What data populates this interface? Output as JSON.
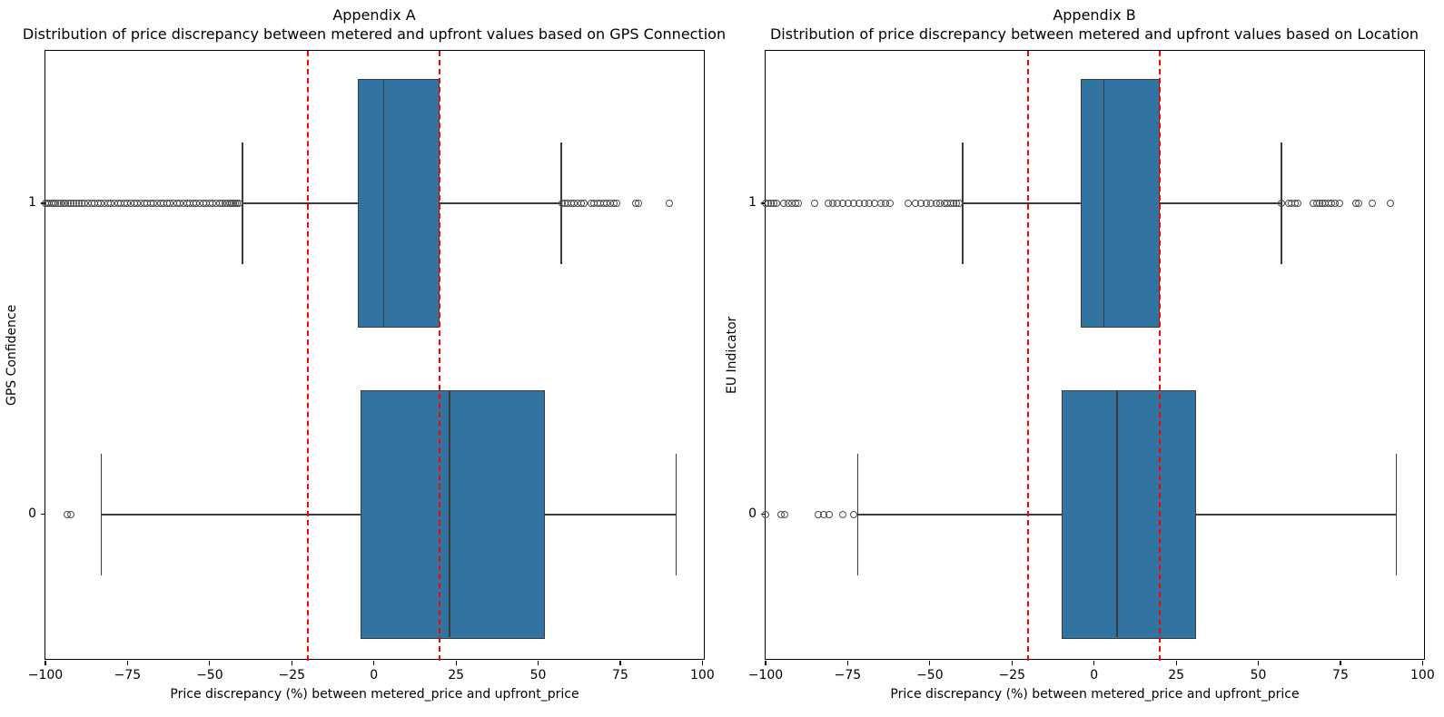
{
  "figure": {
    "background": "#ffffff"
  },
  "colors": {
    "box_fill": "#3274a1",
    "box_edge": "#3c3c3c",
    "whisker": "#3c3c3c",
    "outlier_edge": "#4a4a4a",
    "red_line": "#ff0000",
    "axis": "#000000",
    "text": "#000000"
  },
  "chart_data": [
    {
      "type": "boxplot",
      "orientation": "horizontal",
      "title": "Appendix A",
      "subtitle": "Distribution of price discrepancy between metered and upfront values based on GPS Connection",
      "ylabel": "GPS Confidence",
      "xlabel": "Price discrepancy (%) between metered_price and upfront_price",
      "xlim": [
        -100,
        101
      ],
      "x_tick_values": [
        -100,
        -75,
        -50,
        -25,
        0,
        25,
        50,
        75,
        100
      ],
      "x_tick_labels": [
        "−100",
        "−75",
        "−50",
        "−25",
        "0",
        "25",
        "50",
        "75",
        "100"
      ],
      "y_tick_labels": [
        "1",
        "0"
      ],
      "red_dashed_lines_x": [
        -20,
        20
      ],
      "grid": false,
      "rows": [
        {
          "category": "1",
          "whisker_low": -40,
          "q1": -5,
          "median": 3,
          "q3": 20,
          "whisker_high": 57,
          "outliers_low": [
            -100,
            -99.4,
            -98.8,
            -98.2,
            -97.6,
            -97,
            -96.2,
            -95.4,
            -94.6,
            -93.8,
            -93,
            -92.2,
            -91.4,
            -90.6,
            -89.8,
            -89,
            -88,
            -87,
            -86,
            -85,
            -84,
            -83,
            -82,
            -81,
            -80,
            -79,
            -78,
            -77,
            -76,
            -75,
            -74,
            -73,
            -72,
            -71,
            -70,
            -69,
            -68,
            -67,
            -66,
            -65,
            -64,
            -63,
            -62,
            -61,
            -60,
            -59,
            -58,
            -57,
            -56,
            -55,
            -54,
            -53,
            -52,
            -51,
            -50,
            -49,
            -48,
            -47,
            -46,
            -45.3,
            -44.6,
            -44,
            -43.4,
            -42.8,
            -42.2,
            -41.6,
            -41
          ],
          "outliers_high": [
            57.3,
            58.2,
            59.1,
            60,
            61,
            62,
            63,
            64,
            66.2,
            67.1,
            68,
            69,
            70,
            71,
            72,
            73,
            74,
            79.8,
            80.6,
            90
          ]
        },
        {
          "category": "0",
          "whisker_low": -83,
          "q1": -4,
          "median": 23,
          "q3": 52,
          "whisker_high": 92,
          "outliers_low": [
            -93.5,
            -92.2
          ],
          "outliers_high": []
        }
      ]
    },
    {
      "type": "boxplot",
      "orientation": "horizontal",
      "title": "Appendix B",
      "subtitle": "Distribution of price discrepancy between metered and upfront values based on Location",
      "ylabel": "EU Indicator",
      "xlabel": "Price discrepancy (%) between metered_price and upfront_price",
      "xlim": [
        -100,
        101
      ],
      "x_tick_values": [
        -100,
        -75,
        -50,
        -25,
        0,
        25,
        50,
        75,
        100
      ],
      "x_tick_labels": [
        "−100",
        "−75",
        "−50",
        "−25",
        "0",
        "25",
        "50",
        "75",
        "100"
      ],
      "y_tick_labels": [
        "1",
        "0"
      ],
      "red_dashed_lines_x": [
        -20,
        20
      ],
      "grid": false,
      "rows": [
        {
          "category": "1",
          "whisker_low": -40,
          "q1": -4,
          "median": 3,
          "q3": 20,
          "whisker_high": 57,
          "outliers_low": [
            -100,
            -99.2,
            -98.4,
            -97.6,
            -96.8,
            -94.5,
            -93.2,
            -92.1,
            -91,
            -90,
            -85.2,
            -81,
            -79.6,
            -78.2,
            -76.5,
            -74.8,
            -73.2,
            -71.6,
            -70,
            -68.4,
            -66.8,
            -65,
            -63.5,
            -62,
            -56.5,
            -54.5,
            -52.8,
            -51.2,
            -49.6,
            -48,
            -46.8,
            -45.6,
            -44.6,
            -43.6,
            -42.8,
            -42,
            -41.2
          ],
          "outliers_high": [
            57,
            59.3,
            60.2,
            61.1,
            62,
            66.8,
            67.7,
            68.6,
            69.5,
            70.4,
            71.3,
            72.2,
            73.4,
            74.6,
            79.8,
            80.6,
            84.8,
            90.2
          ]
        },
        {
          "category": "0",
          "whisker_low": -72,
          "q1": -10,
          "median": 7,
          "q3": 31,
          "whisker_high": 92,
          "outliers_low": [
            -100,
            -95.3,
            -94.1,
            -84,
            -82.4,
            -80.6,
            -76.4,
            -73.3
          ],
          "outliers_high": []
        }
      ]
    }
  ]
}
